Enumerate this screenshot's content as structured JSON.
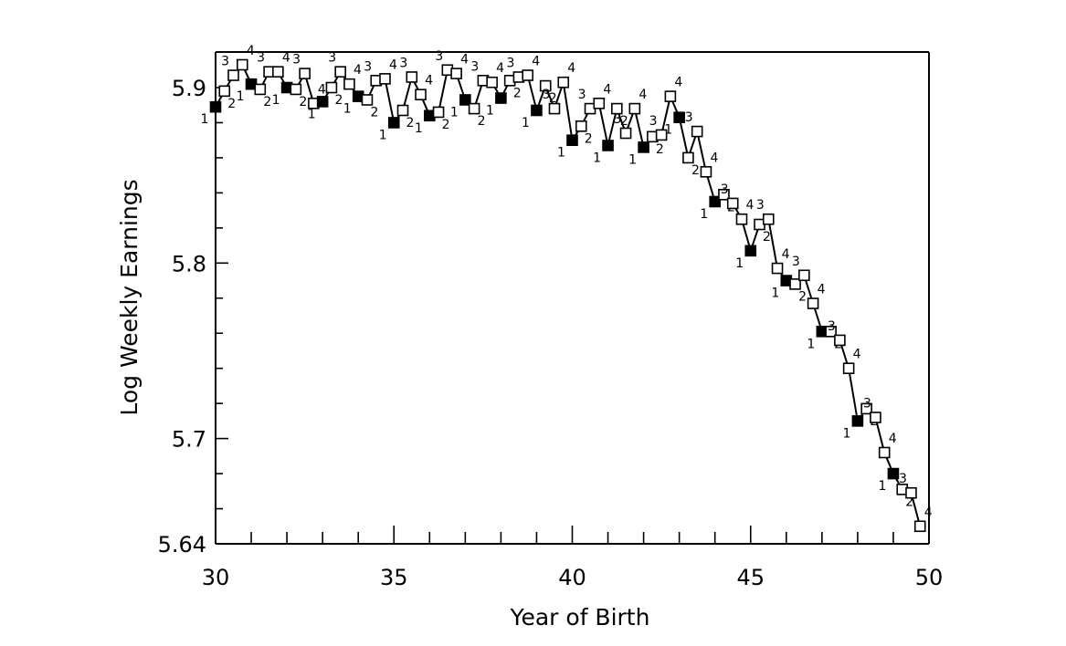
{
  "chart_data": {
    "type": "line",
    "title": "",
    "xlabel": "Year of Birth",
    "ylabel": "Log Weekly Earnings",
    "xlim": [
      30,
      50
    ],
    "ylim": [
      5.64,
      5.92
    ],
    "x_ticks": [
      30,
      35,
      40,
      45,
      50
    ],
    "x_tick_labels": [
      "30",
      "35",
      "40",
      "45",
      "50"
    ],
    "y_ticks": [
      5.64,
      5.7,
      5.8,
      5.9
    ],
    "y_tick_labels": [
      "5.64",
      "5.7",
      "5.8",
      "5.9"
    ],
    "grid": false,
    "legend": "none",
    "marker_note": "filled squares = 1st quarter of birth; open squares = other quarters",
    "series": [
      {
        "x": [
          30.0,
          30.25,
          30.5,
          30.75,
          31.0,
          31.25,
          31.5,
          31.75,
          32.0,
          32.25,
          32.5,
          32.75,
          33.0,
          33.25,
          33.5,
          33.75,
          34.0,
          34.25,
          34.5,
          34.75,
          35.0,
          35.25,
          35.5,
          35.75,
          36.0,
          36.25,
          36.5,
          36.75,
          37.0,
          37.25,
          37.5,
          37.75,
          38.0,
          38.25,
          38.5,
          38.75,
          39.0,
          39.25,
          39.5,
          39.75,
          40.0,
          40.25,
          40.5,
          40.75,
          41.0,
          41.25,
          41.5,
          41.75,
          42.0,
          42.25,
          42.5,
          42.75,
          43.0,
          43.25,
          43.5,
          43.75,
          44.0,
          44.25,
          44.5,
          44.75,
          45.0,
          45.25,
          45.5,
          45.75,
          46.0,
          46.25,
          46.5,
          46.75,
          47.0,
          47.25,
          47.5,
          47.75,
          48.0,
          48.25,
          48.5,
          48.75,
          49.0,
          49.25,
          49.5,
          49.75
        ],
        "y": [
          5.889,
          5.898,
          5.907,
          5.913,
          5.902,
          5.899,
          5.909,
          5.909,
          5.9,
          5.899,
          5.908,
          5.891,
          5.892,
          5.9,
          5.909,
          5.902,
          5.895,
          5.893,
          5.904,
          5.905,
          5.88,
          5.887,
          5.906,
          5.896,
          5.884,
          5.886,
          5.91,
          5.908,
          5.893,
          5.888,
          5.904,
          5.903,
          5.894,
          5.904,
          5.906,
          5.907,
          5.887,
          5.901,
          5.888,
          5.903,
          5.87,
          5.878,
          5.888,
          5.891,
          5.867,
          5.888,
          5.874,
          5.888,
          5.866,
          5.872,
          5.873,
          5.895,
          5.883,
          5.86,
          5.875,
          5.852,
          5.835,
          5.839,
          5.834,
          5.825,
          5.807,
          5.822,
          5.825,
          5.797,
          5.79,
          5.788,
          5.793,
          5.777,
          5.761,
          5.761,
          5.756,
          5.74,
          5.71,
          5.717,
          5.712,
          5.692,
          5.68,
          5.671,
          5.669,
          5.65
        ],
        "quarters": [
          "1",
          "2",
          "3",
          "4",
          "1",
          "2",
          "3",
          "4",
          "1",
          "2",
          "3",
          "4",
          "1",
          "2",
          "3",
          "4",
          "1",
          "2",
          "3",
          "4",
          "1",
          "2",
          "3",
          "4",
          "1",
          "2",
          "3",
          "4",
          "1",
          "2",
          "3",
          "4",
          "1",
          "2",
          "3",
          "4",
          "1",
          "2",
          "3",
          "4",
          "1",
          "2",
          "3",
          "4",
          "1",
          "2",
          "3",
          "4",
          "1",
          "2",
          "3",
          "4",
          "1",
          "2",
          "3",
          "4",
          "1",
          "2",
          "3",
          "4",
          "1",
          "2",
          "3",
          "4",
          "1",
          "2",
          "3",
          "4",
          "1",
          "2",
          "3",
          "4",
          "1",
          "2",
          "3",
          "4",
          "1",
          "2",
          "3",
          "4"
        ]
      }
    ]
  }
}
